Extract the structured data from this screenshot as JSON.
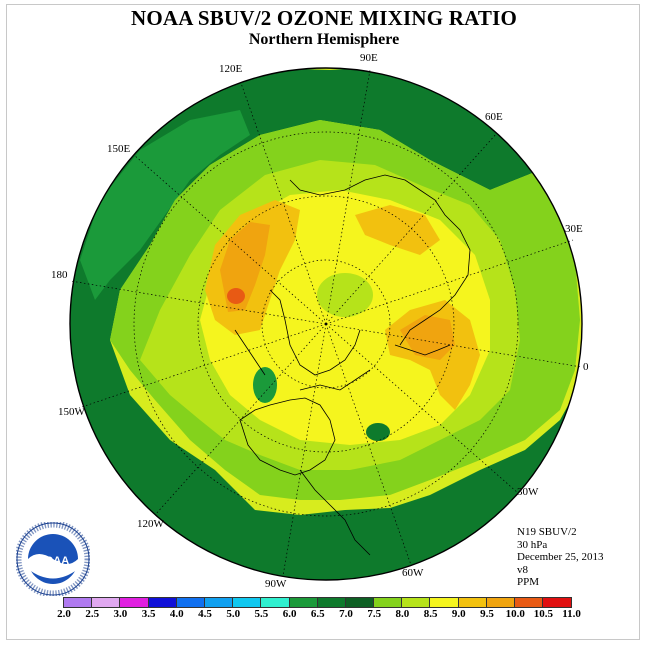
{
  "title": "NOAA SBUV/2 OZONE MIXING RATIO",
  "subtitle": "Northern Hemisphere",
  "lon_labels": [
    "90E",
    "60E",
    "30E",
    "0",
    "30W",
    "60W",
    "90W",
    "120W",
    "150W",
    "180",
    "150E",
    "120E"
  ],
  "info": {
    "instrument": "N19 SBUV/2",
    "level": "30 hPa",
    "date": "December 25, 2013",
    "version": "v8",
    "units": "PPM"
  },
  "legend": {
    "ticks": [
      "2.0",
      "2.5",
      "3.0",
      "3.5",
      "4.0",
      "4.5",
      "5.0",
      "5.5",
      "6.0",
      "6.5",
      "7.0",
      "7.5",
      "8.0",
      "8.5",
      "9.0",
      "9.5",
      "10.0",
      "10.5",
      "11.0"
    ],
    "colors": [
      "#b07af0",
      "#e0a8f0",
      "#e020e0",
      "#1010d8",
      "#1070f0",
      "#10a0f0",
      "#10c8f0",
      "#30f0d0",
      "#1b9a3a",
      "#0e7a2c",
      "#0e6024",
      "#84d21c",
      "#b6e31a",
      "#f5f51e",
      "#f2c10f",
      "#f0a40f",
      "#e85a14",
      "#e01010",
      "#8b4a2a"
    ]
  }
}
